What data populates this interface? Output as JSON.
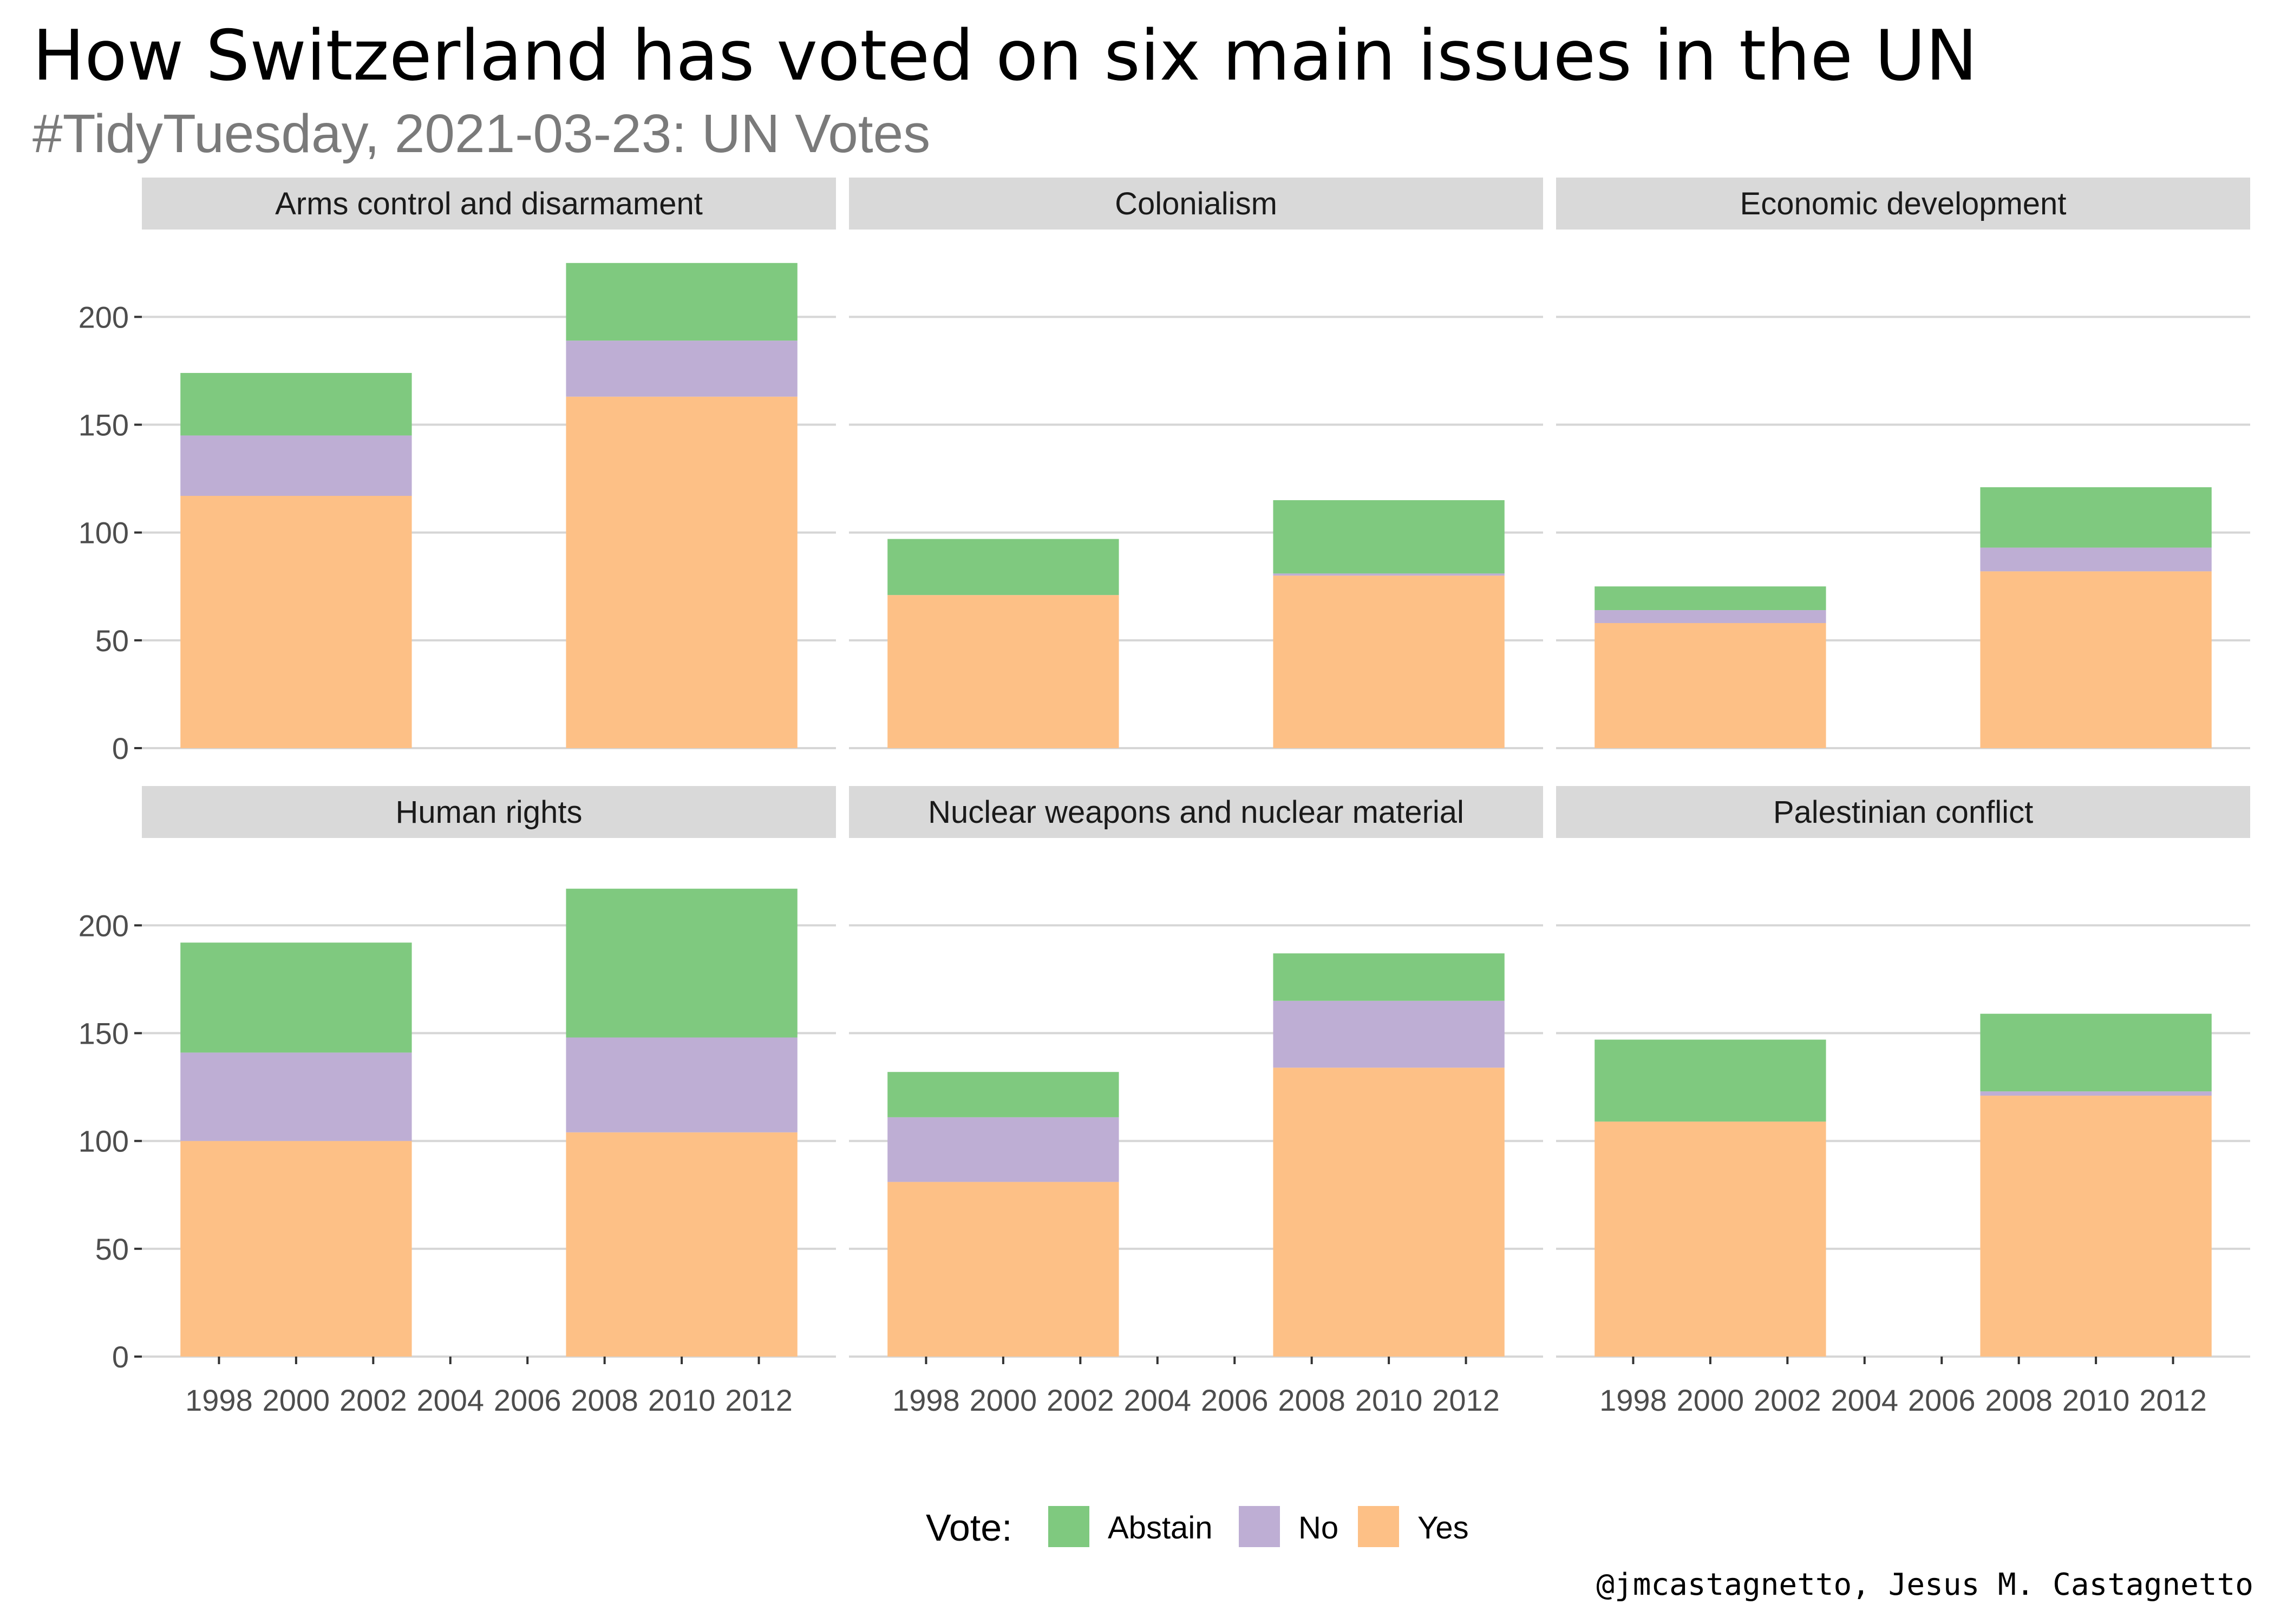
{
  "title": "How Switzerland has voted on six main issues in the UN",
  "subtitle": "#TidyTuesday, 2021-03-23: UN Votes",
  "caption": "@jmcastagnetto, Jesus M. Castagnetto",
  "legend": {
    "title": "Vote:",
    "items": [
      {
        "label": "Abstain",
        "color": "#7fc97f"
      },
      {
        "label": "No",
        "color": "#beaed4"
      },
      {
        "label": "Yes",
        "color": "#fdc086"
      }
    ]
  },
  "chart_data": {
    "type": "bar",
    "stacked": true,
    "facet_layout": "2 rows x 3 columns",
    "x_ticks": [
      1998,
      2000,
      2002,
      2004,
      2006,
      2008,
      2010,
      2012
    ],
    "xlim": [
      1996,
      2014
    ],
    "y_ticks": [
      0,
      50,
      100,
      150,
      200
    ],
    "ylim": [
      0,
      236
    ],
    "grid": true,
    "legend_position": "bottom",
    "series_order": [
      "Yes",
      "No",
      "Abstain"
    ],
    "panels": [
      {
        "title": "Arms control and disarmament",
        "bars": [
          {
            "x": 2000,
            "Yes": 117,
            "No": 28,
            "Abstain": 29
          },
          {
            "x": 2010,
            "Yes": 163,
            "No": 26,
            "Abstain": 36
          }
        ]
      },
      {
        "title": "Colonialism",
        "bars": [
          {
            "x": 2000,
            "Yes": 71,
            "No": 0,
            "Abstain": 26
          },
          {
            "x": 2010,
            "Yes": 80,
            "No": 1,
            "Abstain": 34
          }
        ]
      },
      {
        "title": "Economic development",
        "bars": [
          {
            "x": 2000,
            "Yes": 58,
            "No": 6,
            "Abstain": 11
          },
          {
            "x": 2010,
            "Yes": 82,
            "No": 11,
            "Abstain": 28
          }
        ]
      },
      {
        "title": "Human rights",
        "bars": [
          {
            "x": 2000,
            "Yes": 100,
            "No": 41,
            "Abstain": 51
          },
          {
            "x": 2010,
            "Yes": 104,
            "No": 44,
            "Abstain": 69
          }
        ]
      },
      {
        "title": "Nuclear weapons and nuclear material",
        "bars": [
          {
            "x": 2000,
            "Yes": 81,
            "No": 30,
            "Abstain": 21
          },
          {
            "x": 2010,
            "Yes": 134,
            "No": 31,
            "Abstain": 22
          }
        ]
      },
      {
        "title": "Palestinian conflict",
        "bars": [
          {
            "x": 2000,
            "Yes": 109,
            "No": 0,
            "Abstain": 38
          },
          {
            "x": 2010,
            "Yes": 121,
            "No": 2,
            "Abstain": 36
          }
        ]
      }
    ]
  }
}
